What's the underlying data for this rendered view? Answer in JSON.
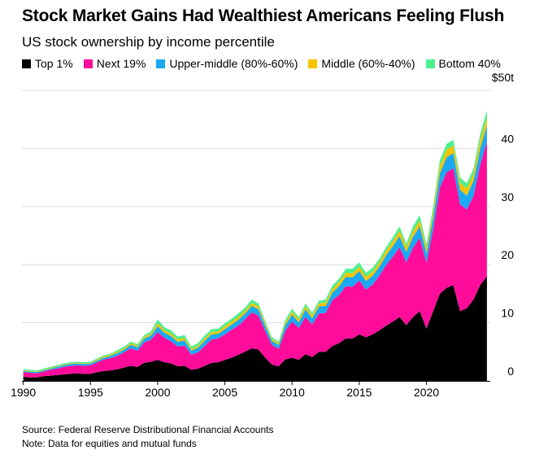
{
  "header": {
    "title": "Stock Market Gains Had Wealthiest Americans Feeling Flush",
    "subtitle": "US stock ownership by income percentile"
  },
  "footer": {
    "source": "Source: Federal Reserve Distributional Financial Accounts",
    "note": "Note: Data for equities and mutual funds"
  },
  "chart_data": {
    "type": "area",
    "stacked": true,
    "title": "Stock Market Gains Had Wealthiest Americans Feeling Flush",
    "subtitle": "US stock ownership by income percentile",
    "xlabel": "",
    "ylabel": "",
    "xlim": [
      1989.9,
      2024.75
    ],
    "ylim": [
      0,
      50
    ],
    "x_ticks": [
      "1990",
      "1995",
      "2000",
      "2005",
      "2010",
      "2015",
      "2020"
    ],
    "y_ticks": [
      0,
      10,
      20,
      30,
      40,
      50
    ],
    "y_tick_labels": [
      "0",
      "10",
      "20",
      "30",
      "40",
      "$50t"
    ],
    "grid": true,
    "legend_position": "top",
    "x": [
      1990.0,
      1990.5,
      1991.0,
      1991.5,
      1992.0,
      1992.5,
      1993.0,
      1993.5,
      1994.0,
      1994.5,
      1995.0,
      1995.5,
      1996.0,
      1996.5,
      1997.0,
      1997.5,
      1998.0,
      1998.5,
      1999.0,
      1999.5,
      2000.0,
      2000.5,
      2001.0,
      2001.5,
      2002.0,
      2002.5,
      2003.0,
      2003.5,
      2004.0,
      2004.5,
      2005.0,
      2005.5,
      2006.0,
      2006.5,
      2007.0,
      2007.5,
      2008.0,
      2008.5,
      2009.0,
      2009.5,
      2010.0,
      2010.5,
      2011.0,
      2011.5,
      2012.0,
      2012.5,
      2013.0,
      2013.5,
      2014.0,
      2014.5,
      2015.0,
      2015.5,
      2016.0,
      2016.5,
      2017.0,
      2017.5,
      2018.0,
      2018.5,
      2019.0,
      2019.5,
      2020.0,
      2020.5,
      2021.0,
      2021.5,
      2022.0,
      2022.5,
      2023.0,
      2023.5,
      2024.0,
      2024.5
    ],
    "total": [
      2.0,
      1.9,
      1.8,
      2.1,
      2.4,
      2.7,
      3.0,
      3.2,
      3.3,
      3.2,
      3.3,
      3.9,
      4.4,
      4.7,
      5.3,
      5.9,
      6.8,
      6.3,
      7.9,
      8.5,
      10.6,
      9.2,
      8.7,
      7.6,
      7.9,
      5.9,
      6.5,
      7.8,
      8.9,
      9.0,
      9.9,
      10.7,
      11.6,
      12.6,
      14.0,
      13.3,
      10.3,
      7.5,
      6.8,
      10.5,
      12.4,
      11.0,
      13.3,
      11.7,
      13.8,
      14.0,
      16.4,
      17.6,
      19.3,
      19.3,
      20.4,
      18.6,
      19.5,
      21.0,
      23.0,
      24.7,
      26.6,
      23.6,
      26.6,
      28.5,
      23.5,
      30.0,
      38.0,
      40.8,
      41.5,
      35.0,
      34.0,
      36.5,
      42.5,
      46.5
    ],
    "series": [
      {
        "name": "Top 1%",
        "color": "#000000",
        "values": [
          0.7,
          0.6,
          0.6,
          0.8,
          0.9,
          1.0,
          1.1,
          1.2,
          1.3,
          1.2,
          1.2,
          1.5,
          1.7,
          1.8,
          2.0,
          2.3,
          2.6,
          2.4,
          3.1,
          3.3,
          3.6,
          3.2,
          3.0,
          2.5,
          2.6,
          1.9,
          2.1,
          2.6,
          3.1,
          3.2,
          3.6,
          4.0,
          4.5,
          5.0,
          5.6,
          5.4,
          4.0,
          2.8,
          2.5,
          3.7,
          4.0,
          3.6,
          4.6,
          4.1,
          5.0,
          5.0,
          6.0,
          6.5,
          7.3,
          7.3,
          8.0,
          7.5,
          8.0,
          8.7,
          9.5,
          10.2,
          11.0,
          9.6,
          11.0,
          12.0,
          9.0,
          12.0,
          15.0,
          16.0,
          16.5,
          12.0,
          12.5,
          14.0,
          16.5,
          18.0
        ]
      },
      {
        "name": "Next 19%",
        "color": "#ff0d9a",
        "values": [
          0.8,
          0.8,
          0.7,
          0.8,
          1.0,
          1.1,
          1.3,
          1.4,
          1.4,
          1.4,
          1.5,
          1.7,
          2.0,
          2.1,
          2.3,
          2.6,
          3.0,
          2.8,
          3.5,
          3.8,
          4.8,
          4.2,
          3.8,
          3.4,
          3.5,
          2.6,
          2.8,
          3.4,
          4.0,
          4.1,
          4.4,
          4.8,
          5.0,
          5.6,
          6.2,
          5.8,
          4.6,
          3.4,
          3.0,
          4.9,
          6.2,
          5.5,
          6.4,
          5.6,
          6.6,
          6.7,
          7.9,
          8.3,
          9.0,
          8.9,
          9.3,
          8.2,
          8.6,
          9.4,
          10.4,
          11.2,
          12.0,
          10.8,
          11.9,
          12.6,
          11.3,
          14.0,
          18.3,
          19.9,
          20.1,
          18.4,
          17.0,
          17.8,
          20.7,
          23.2
        ]
      },
      {
        "name": "Upper-middle (80%-60%)",
        "color": "#1ba9f3",
        "values": [
          0.2,
          0.2,
          0.2,
          0.2,
          0.2,
          0.3,
          0.3,
          0.3,
          0.3,
          0.3,
          0.3,
          0.3,
          0.3,
          0.4,
          0.5,
          0.5,
          0.6,
          0.6,
          0.7,
          0.7,
          1.0,
          0.9,
          0.9,
          0.8,
          0.9,
          0.7,
          0.8,
          0.9,
          0.9,
          0.8,
          0.9,
          0.9,
          1.0,
          1.0,
          1.1,
          1.1,
          0.9,
          0.7,
          0.7,
          1.0,
          1.2,
          1.0,
          1.3,
          1.1,
          1.2,
          1.2,
          1.3,
          1.5,
          1.6,
          1.6,
          1.6,
          1.5,
          1.5,
          1.6,
          1.7,
          1.8,
          1.9,
          1.8,
          1.9,
          2.0,
          1.7,
          2.1,
          2.4,
          2.6,
          2.6,
          2.5,
          2.4,
          2.6,
          2.8,
          2.7
        ]
      },
      {
        "name": "Middle (60%-40%)",
        "color": "#f9c300",
        "values": [
          0.1,
          0.1,
          0.1,
          0.1,
          0.1,
          0.1,
          0.1,
          0.1,
          0.1,
          0.1,
          0.1,
          0.2,
          0.2,
          0.2,
          0.2,
          0.2,
          0.3,
          0.2,
          0.3,
          0.3,
          0.5,
          0.4,
          0.4,
          0.4,
          0.4,
          0.3,
          0.3,
          0.4,
          0.4,
          0.4,
          0.5,
          0.5,
          0.5,
          0.5,
          0.5,
          0.5,
          0.4,
          0.3,
          0.3,
          0.4,
          0.5,
          0.5,
          0.5,
          0.5,
          0.5,
          0.6,
          0.6,
          0.7,
          0.7,
          0.7,
          0.7,
          0.7,
          0.7,
          0.7,
          0.8,
          0.8,
          0.9,
          0.8,
          0.9,
          1.0,
          0.8,
          1.0,
          1.3,
          1.3,
          1.3,
          1.2,
          1.2,
          1.2,
          1.4,
          1.4
        ]
      },
      {
        "name": "Bottom 40%",
        "color": "#4df08e",
        "values": [
          0.2,
          0.2,
          0.2,
          0.2,
          0.2,
          0.2,
          0.2,
          0.2,
          0.2,
          0.2,
          0.2,
          0.2,
          0.2,
          0.2,
          0.3,
          0.3,
          0.3,
          0.3,
          0.3,
          0.4,
          0.7,
          0.5,
          0.6,
          0.5,
          0.5,
          0.4,
          0.5,
          0.5,
          0.5,
          0.5,
          0.5,
          0.5,
          0.6,
          0.5,
          0.6,
          0.5,
          0.4,
          0.3,
          0.3,
          0.5,
          0.5,
          0.4,
          0.5,
          0.4,
          0.5,
          0.5,
          0.6,
          0.6,
          0.7,
          0.8,
          0.8,
          0.7,
          0.7,
          0.6,
          0.6,
          0.7,
          0.8,
          0.6,
          0.9,
          0.9,
          0.7,
          0.9,
          1.0,
          1.0,
          1.0,
          0.9,
          0.9,
          0.9,
          1.1,
          1.2
        ]
      }
    ]
  }
}
